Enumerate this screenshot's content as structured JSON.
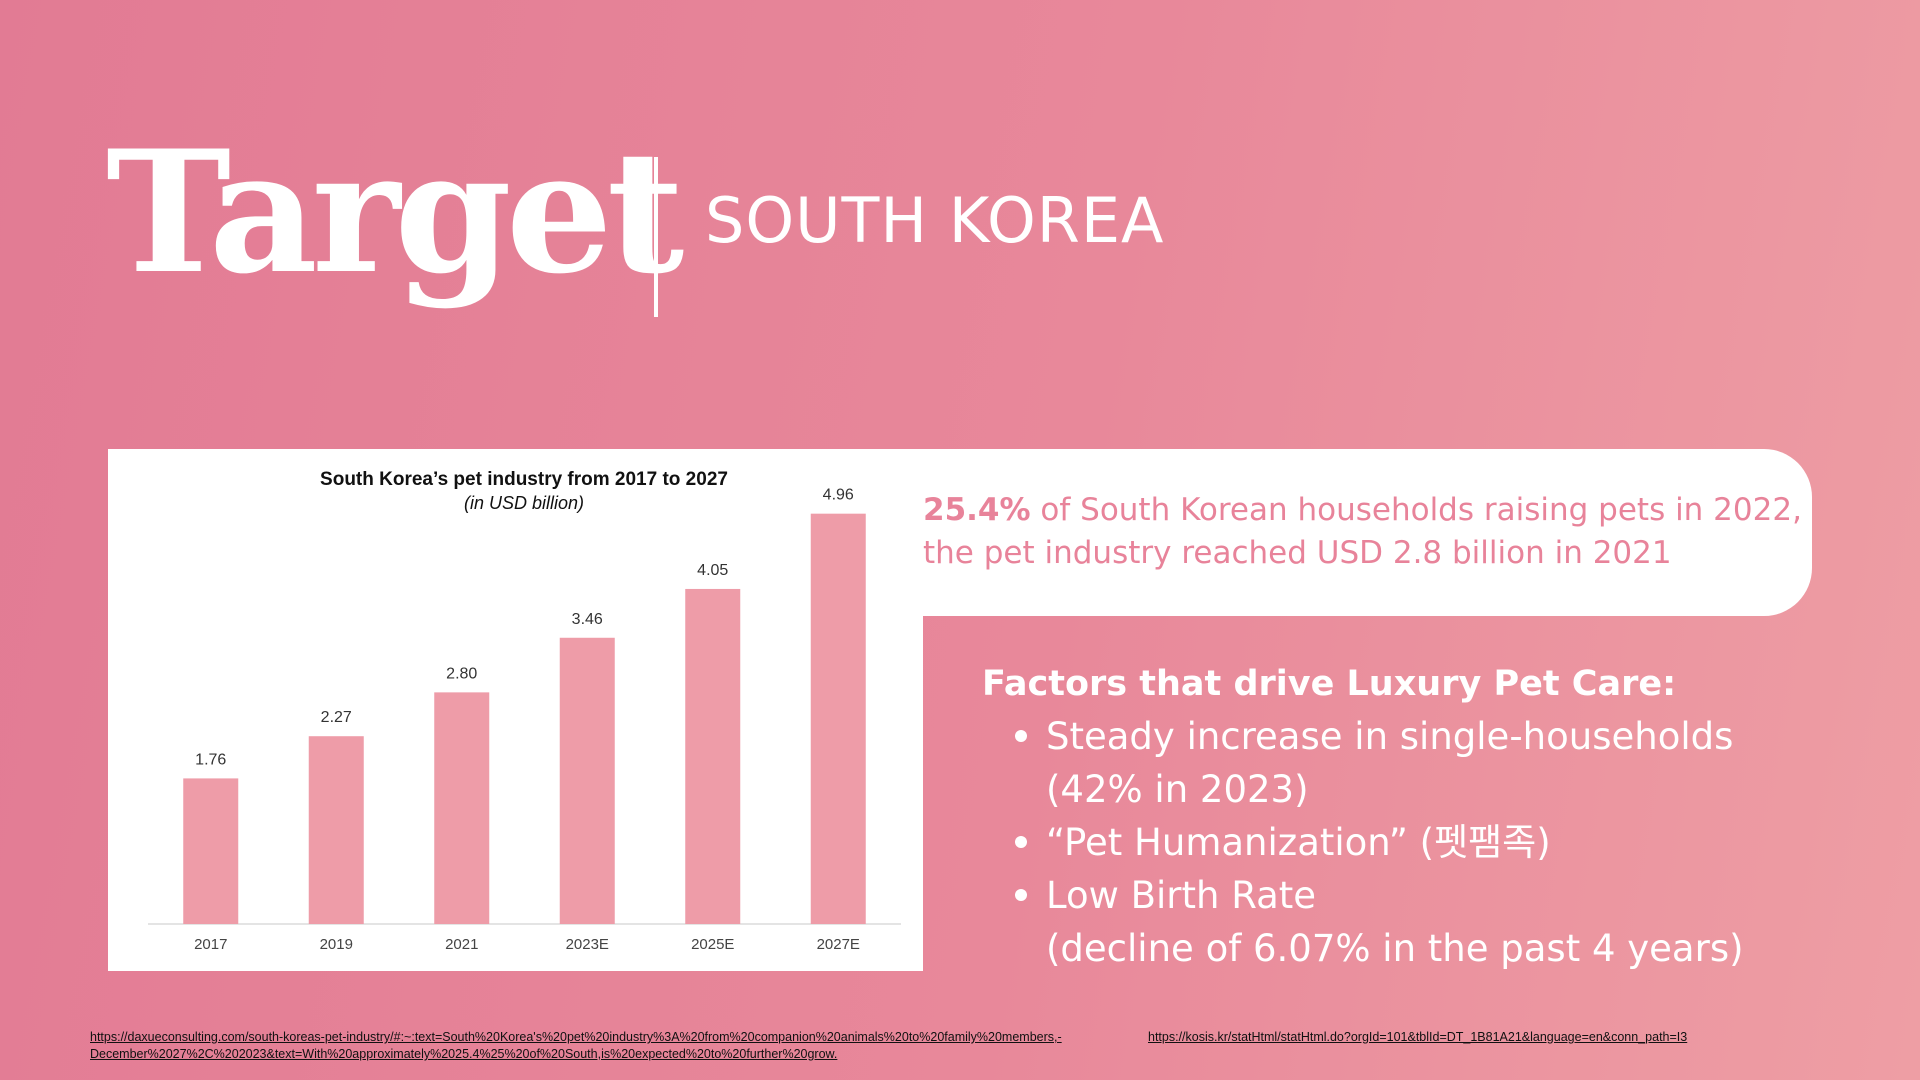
{
  "header": {
    "title": "Target",
    "subtitle": "SOUTH KOREA"
  },
  "chart_data": {
    "type": "bar",
    "title": "South Korea’s pet industry from 2017 to 2027",
    "subtitle": "(in USD billion)",
    "categories": [
      "2017",
      "2019",
      "2021",
      "2023E",
      "2025E",
      "2027E"
    ],
    "values": [
      1.76,
      2.27,
      2.8,
      3.46,
      4.05,
      4.96
    ],
    "value_labels": [
      "1.76",
      "2.27",
      "2.80",
      "3.46",
      "4.05",
      "4.96"
    ],
    "xlabel": "",
    "ylabel": "",
    "ylim": [
      0,
      5.5
    ],
    "grid": false,
    "bar_color": "#ee9ca8"
  },
  "stat_card": {
    "highlight": "25.4%",
    "line1_rest": " of South Korean households raising pets in 2022,",
    "line2": "the pet industry reached USD 2.8 billion in 2021"
  },
  "factors": {
    "title": "Factors that drive Luxury Pet Care:",
    "items": [
      {
        "line1": "Steady increase in single-households",
        "line2": "(42% in 2023)"
      },
      {
        "line1": "“Pet Humanization” (펫팸족)",
        "line2": ""
      },
      {
        "line1": "Low Birth Rate",
        "line2": "(decline of 6.07% in the past 4 years)"
      }
    ]
  },
  "sources": {
    "source1_line1": "https://daxueconsulting.com/south-koreas-pet-industry/#:~:text=South%20Korea's%20pet%20industry%3A%20from%20companion%20animals%20to%20family%20members,-",
    "source1_line2": "December%2027%2C%202023&text=With%20approximately%2025.4%25%20of%20South,is%20expected%20to%20further%20grow.",
    "source2": "https://kosis.kr/statHtml/statHtml.do?orgId=101&tblId=DT_1B81A21&language=en&conn_path=I3"
  },
  "colors": {
    "accent_pink": "#e8839a",
    "bar_pink": "#ee9ca8",
    "white": "#ffffff"
  }
}
